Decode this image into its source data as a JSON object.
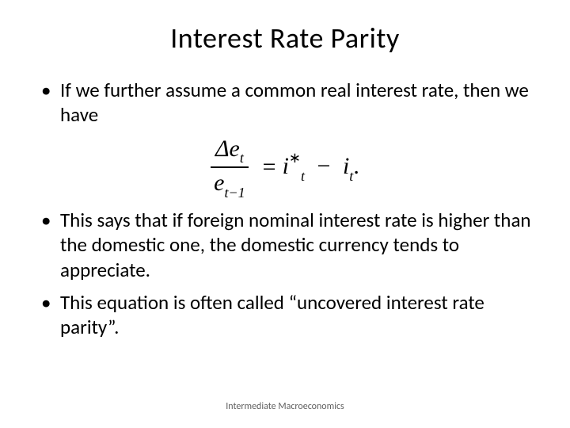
{
  "title": "Interest Rate Parity",
  "bullets": {
    "b1": "If we further assume a common real interest rate, then we have",
    "b2": "This says that if foreign nominal interest rate is higher than the domestic one, the domestic currency tends to appreciate.",
    "b3": "This equation is often called “uncovered interest rate parity”."
  },
  "equation": {
    "delta": "Δ",
    "e": "e",
    "t": "t",
    "tminus1": "t−1",
    "eq": "=",
    "i": "i",
    "star": "∗",
    "minus": "−",
    "period": "."
  },
  "footer": "Intermediate Macroeconomics",
  "style": {
    "title_fontsize": 36,
    "body_fontsize": 25,
    "equation_fontsize": 30,
    "footer_fontsize": 12,
    "text_color": "#000000",
    "footer_color": "#606060",
    "background_color": "#ffffff"
  }
}
